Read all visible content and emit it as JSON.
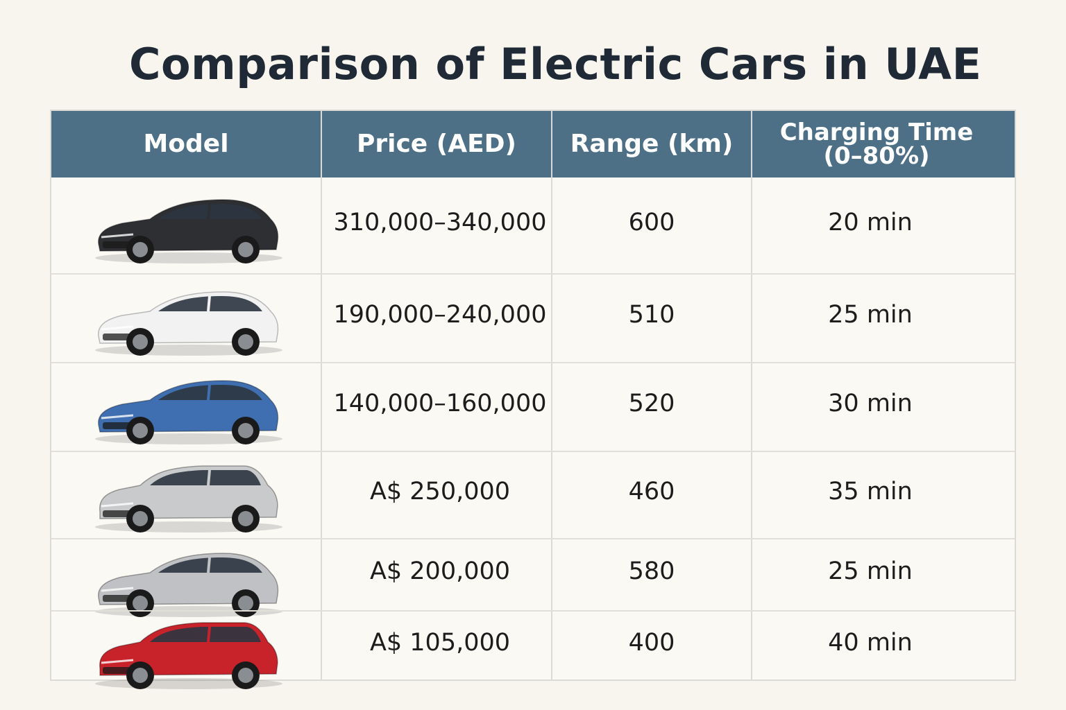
{
  "title": "Comparison of Electric Cars in UAE",
  "headers": {
    "model": "Model",
    "price": "Price (AED)",
    "range": "Range (km)",
    "charging_line1": "Charging Time",
    "charging_line2": "(0–80%)"
  },
  "rows": [
    {
      "car_color": "#2d2f33",
      "car_type": "sedan",
      "price": "310,000–340,000",
      "range": "600",
      "charging": "20 min"
    },
    {
      "car_color": "#f2f2f2",
      "car_type": "sedan",
      "price": "190,000–240,000",
      "range": "510",
      "charging": "25 min"
    },
    {
      "car_color": "#3f6fb0",
      "car_type": "sedan",
      "price": "140,000–160,000",
      "range": "520",
      "charging": "30 min"
    },
    {
      "car_color": "#c9cacc",
      "car_type": "suv",
      "price": "A$ 250,000",
      "range": "460",
      "charging": "35 min"
    },
    {
      "car_color": "#bfc1c4",
      "car_type": "sedan",
      "price": "A$ 200,000",
      "range": "580",
      "charging": "25 min"
    },
    {
      "car_color": "#c8222b",
      "car_type": "suv",
      "price": "A$ 105,000",
      "range": "400",
      "charging": "40 min"
    }
  ]
}
